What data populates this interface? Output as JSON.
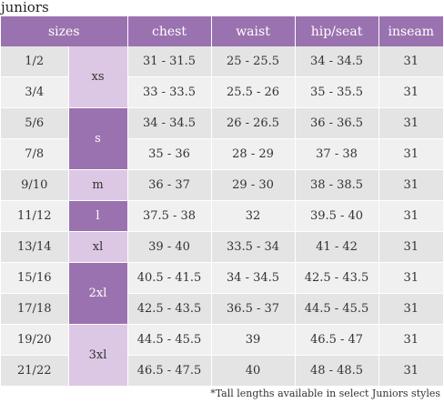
{
  "title": "juniors",
  "headers": {
    "sizes": "sizes",
    "chest": "chest",
    "waist": "waist",
    "hip": "hip/seat",
    "inseam": "inseam"
  },
  "rows": [
    {
      "size": "1/2",
      "chest": "31 - 31.5",
      "waist": "25 - 25.5",
      "hip": "34 - 34.5",
      "inseam": "31"
    },
    {
      "size": "3/4",
      "chest": "33 - 33.5",
      "waist": "25.5 - 26",
      "hip": "35 - 35.5",
      "inseam": "31"
    },
    {
      "size": "5/6",
      "chest": "34 - 34.5",
      "waist": "26 - 26.5",
      "hip": "36 - 36.5",
      "inseam": "31"
    },
    {
      "size": "7/8",
      "chest": "35 - 36",
      "waist": "28 - 29",
      "hip": "37 - 38",
      "inseam": "31"
    },
    {
      "size": "9/10",
      "chest": "36 - 37",
      "waist": "29 - 30",
      "hip": "38 - 38.5",
      "inseam": "31"
    },
    {
      "size": "11/12",
      "chest": "37.5 - 38",
      "waist": "32",
      "hip": "39.5 - 40",
      "inseam": "31"
    },
    {
      "size": "13/14",
      "chest": "39 - 40",
      "waist": "33.5 - 34",
      "hip": "41 - 42",
      "inseam": "31"
    },
    {
      "size": "15/16",
      "chest": "40.5 - 41.5",
      "waist": "34 - 34.5",
      "hip": "42.5 - 43.5",
      "inseam": "31"
    },
    {
      "size": "17/18",
      "chest": "42.5 - 43.5",
      "waist": "36.5 - 37",
      "hip": "44.5 - 45.5",
      "inseam": "31"
    },
    {
      "size": "19/20",
      "chest": "44.5 - 45.5",
      "waist": "39",
      "hip": "46.5 - 47",
      "inseam": "31"
    },
    {
      "size": "21/22",
      "chest": "46.5 - 47.5",
      "waist": "40",
      "hip": "48 - 48.5",
      "inseam": "31"
    }
  ],
  "letter_sizes": [
    "xs",
    "s",
    "m",
    "l",
    "xl",
    "2xl",
    "3xl"
  ],
  "footnote": "*Tall lengths available in select Juniors styles",
  "colors": {
    "header": "#9b72b0",
    "letter_light": "#dcc8e4",
    "letter_dark": "#9b72b0",
    "row_dark": "#e4e4e4",
    "row_light": "#f0f0f0"
  }
}
